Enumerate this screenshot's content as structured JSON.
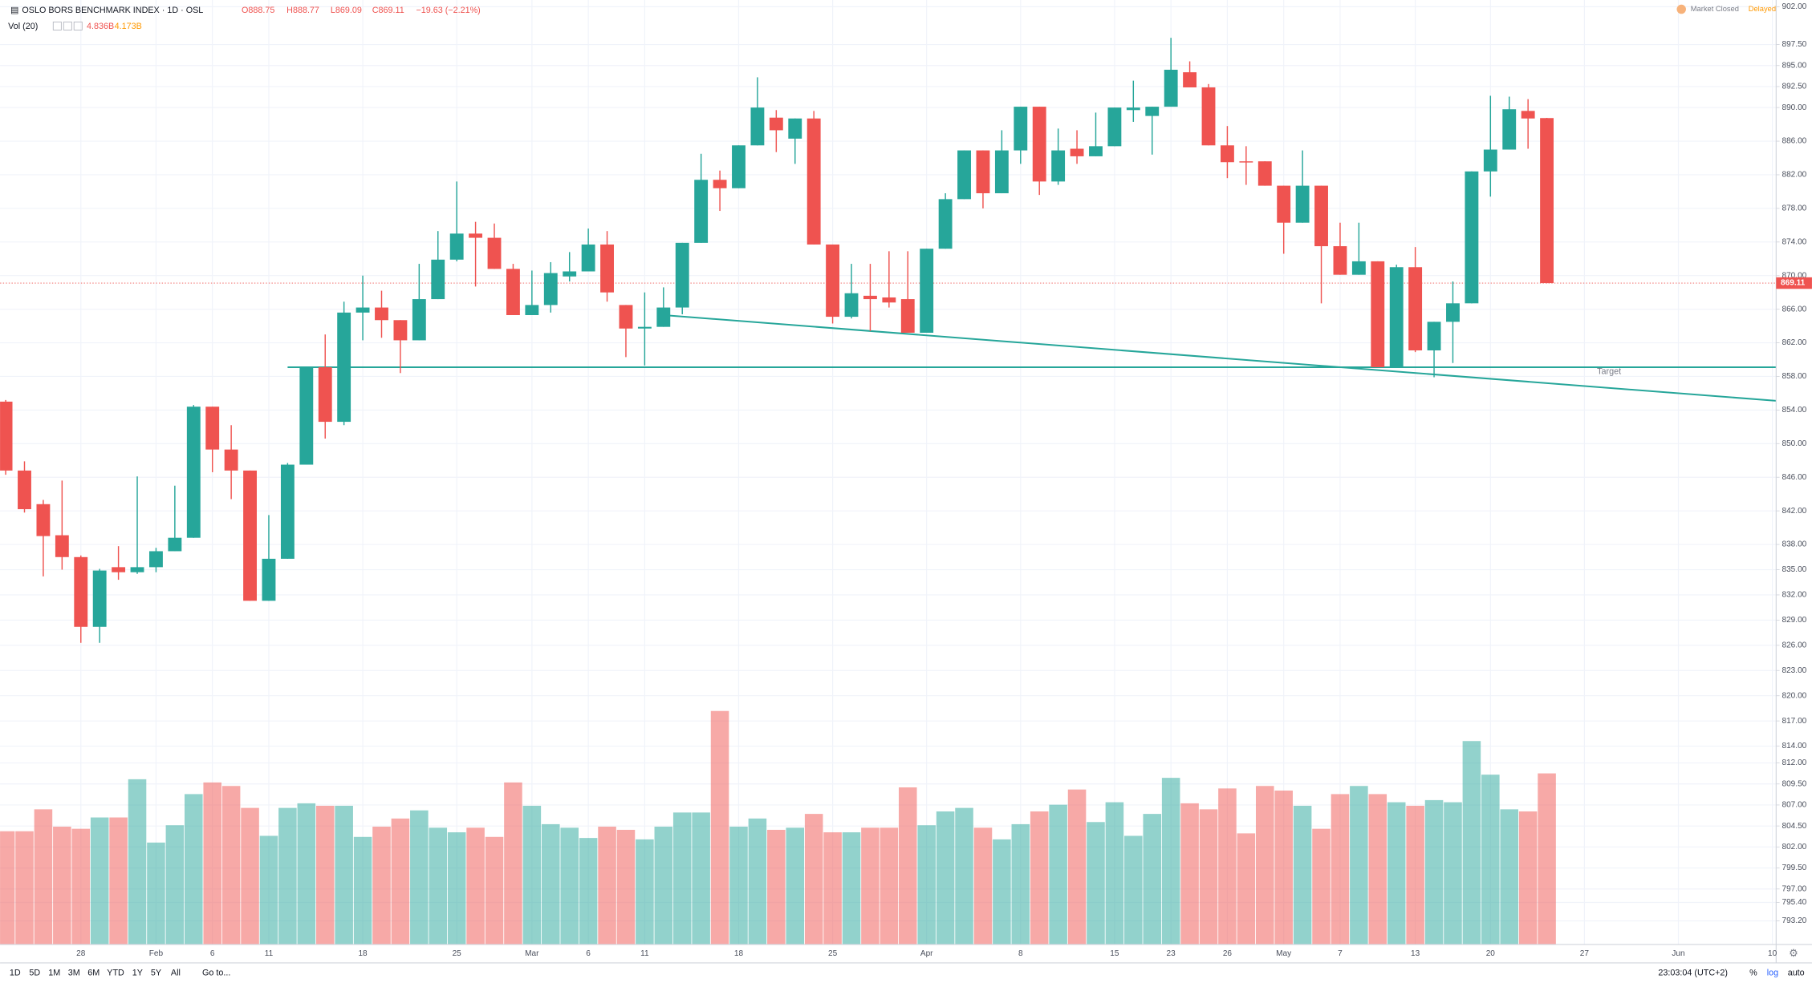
{
  "header": {
    "symbol": "OSLO BORS BENCHMARK INDEX · 1D · OSL",
    "open": "O888.75",
    "high": "H888.77",
    "low": "L869.09",
    "close": "C869.11",
    "change": "−19.63 (−2.21%)",
    "volume_label": "Vol (20)",
    "volume": "4.836B",
    "volume_ma": "4.173B",
    "status": "Market Closed",
    "delay": "Delayed"
  },
  "footer": {
    "ranges": [
      "1D",
      "5D",
      "1M",
      "3M",
      "6M",
      "YTD",
      "1Y",
      "5Y",
      "All"
    ],
    "goto": "Go to...",
    "time": "23:03:04 (UTC+2)",
    "percent": "%",
    "log": "log",
    "auto": "auto"
  },
  "chart_data": {
    "type": "candlestick",
    "up_color": "#26a69a",
    "down_color": "#ef5350",
    "grid": true,
    "annotation": "Target",
    "categories": [
      null,
      null,
      null,
      null,
      "28",
      null,
      null,
      null,
      "Feb",
      null,
      null,
      "6",
      null,
      null,
      "11",
      null,
      null,
      null,
      null,
      "18",
      null,
      null,
      null,
      null,
      "25",
      null,
      null,
      null,
      "Mar",
      null,
      null,
      "6",
      null,
      null,
      "11",
      null,
      null,
      null,
      null,
      "18",
      null,
      null,
      null,
      null,
      "25",
      null,
      null,
      null,
      null,
      "Apr",
      null,
      null,
      null,
      null,
      "8",
      null,
      null,
      null,
      null,
      "15",
      null,
      null,
      "23",
      null,
      null,
      "26",
      null,
      null,
      "May",
      null,
      null,
      "7",
      null,
      null,
      null,
      "13",
      null,
      null,
      null,
      "20",
      null,
      null,
      null,
      null,
      "27",
      null,
      null,
      null,
      null,
      "Jun",
      null,
      null,
      null,
      null,
      "10"
    ],
    "xlim": [
      -0.3,
      94.2
    ],
    "open": [
      855.0,
      846.8,
      842.8,
      839.1,
      836.5,
      828.2,
      835.3,
      834.7,
      835.3,
      837.2,
      838.8,
      854.4,
      849.3,
      846.8,
      831.3,
      836.3,
      847.5,
      859.1,
      852.6,
      865.6,
      866.2,
      864.7,
      862.3,
      867.2,
      871.9,
      875.0,
      874.5,
      870.8,
      865.3,
      866.5,
      869.9,
      870.5,
      873.7,
      866.5,
      863.7,
      863.9,
      866.2,
      873.9,
      881.4,
      880.4,
      885.5,
      888.8,
      886.3,
      888.7,
      873.7,
      865.1,
      867.6,
      867.4,
      867.2,
      863.2,
      873.2,
      879.1,
      884.9,
      879.8,
      884.9,
      890.1,
      881.2,
      885.1,
      884.2,
      885.4,
      889.7,
      889.0,
      890.1,
      894.2,
      892.4,
      885.5,
      883.6,
      883.6,
      880.7,
      876.3,
      880.7,
      873.5,
      870.1,
      871.7,
      859.1,
      871.0,
      861.1,
      864.5,
      866.7,
      882.4,
      885.0,
      889.6,
      888.75,
      null,
      null,
      null,
      null,
      null,
      null,
      null,
      null,
      null,
      null,
      null,
      null
    ],
    "high": [
      855.2,
      847.9,
      843.3,
      845.6,
      836.7,
      835.1,
      837.8,
      846.1,
      837.6,
      845.0,
      854.6,
      854.4,
      852.2,
      846.8,
      841.5,
      847.7,
      859.1,
      863.0,
      866.9,
      870.0,
      868.2,
      864.7,
      871.4,
      875.3,
      881.2,
      876.4,
      876.2,
      871.4,
      870.6,
      871.6,
      872.8,
      875.6,
      875.3,
      866.5,
      868.0,
      868.6,
      873.9,
      884.5,
      882.5,
      885.5,
      893.6,
      889.7,
      888.7,
      889.6,
      873.7,
      871.4,
      871.4,
      872.9,
      872.9,
      873.2,
      879.8,
      884.9,
      884.9,
      887.3,
      890.1,
      890.1,
      887.5,
      887.3,
      889.4,
      890.0,
      893.2,
      890.1,
      898.3,
      895.5,
      892.8,
      887.8,
      885.4,
      883.6,
      880.7,
      884.9,
      880.7,
      876.3,
      876.3,
      871.7,
      871.3,
      873.4,
      864.5,
      869.3,
      882.4,
      891.4,
      891.3,
      891.0,
      888.77,
      null,
      null,
      null,
      null,
      null,
      null,
      null,
      null,
      null,
      null,
      null,
      null
    ],
    "low": [
      846.3,
      841.8,
      834.2,
      835.0,
      826.3,
      826.3,
      833.8,
      834.5,
      834.7,
      837.2,
      838.8,
      846.6,
      843.4,
      831.3,
      831.3,
      836.3,
      847.5,
      850.6,
      852.2,
      862.3,
      862.6,
      858.4,
      862.3,
      867.2,
      871.7,
      868.7,
      870.8,
      865.3,
      865.3,
      865.6,
      869.3,
      870.5,
      866.9,
      860.3,
      859.3,
      863.9,
      865.4,
      873.9,
      877.7,
      880.4,
      885.5,
      884.7,
      883.3,
      873.7,
      864.3,
      864.9,
      863.4,
      866.2,
      863.2,
      863.2,
      873.2,
      879.1,
      878.0,
      879.8,
      883.3,
      879.6,
      880.8,
      883.3,
      884.2,
      885.4,
      888.3,
      884.4,
      890.1,
      892.4,
      885.5,
      881.6,
      880.8,
      880.7,
      872.6,
      876.3,
      866.7,
      870.1,
      870.1,
      859.1,
      859.1,
      860.9,
      857.9,
      859.6,
      866.7,
      879.4,
      885.0,
      885.1,
      869.09,
      null,
      null,
      null,
      null,
      null,
      null,
      null,
      null,
      null,
      null,
      null,
      null
    ],
    "close": [
      846.8,
      842.2,
      839.0,
      836.5,
      828.2,
      834.9,
      834.7,
      835.3,
      837.2,
      838.8,
      854.4,
      849.3,
      846.8,
      831.3,
      836.3,
      847.5,
      859.1,
      852.6,
      865.6,
      866.2,
      864.7,
      862.3,
      867.2,
      871.9,
      875.0,
      874.5,
      870.8,
      865.3,
      866.5,
      870.3,
      870.5,
      873.7,
      868.0,
      863.7,
      863.9,
      866.2,
      873.9,
      881.4,
      880.4,
      885.5,
      890.0,
      887.3,
      888.7,
      873.7,
      865.1,
      867.9,
      867.2,
      866.8,
      863.2,
      873.2,
      879.1,
      884.9,
      879.8,
      884.9,
      890.1,
      881.2,
      884.9,
      884.2,
      885.4,
      890.0,
      890.0,
      890.1,
      894.5,
      892.4,
      885.5,
      883.5,
      883.5,
      880.7,
      876.3,
      880.7,
      873.5,
      870.1,
      871.7,
      859.1,
      871.0,
      861.1,
      864.5,
      866.7,
      882.4,
      885.0,
      889.8,
      888.7,
      869.11,
      null,
      null,
      null,
      null,
      null,
      null,
      null,
      null,
      null,
      null,
      null,
      null
    ],
    "volume": [
      3.2,
      3.2,
      3.82,
      3.33,
      3.27,
      3.59,
      3.59,
      4.67,
      2.88,
      3.37,
      4.25,
      4.58,
      4.48,
      3.86,
      3.07,
      3.86,
      3.99,
      3.92,
      3.92,
      3.04,
      3.33,
      3.56,
      3.79,
      3.3,
      3.17,
      3.3,
      3.04,
      4.58,
      3.92,
      3.4,
      3.3,
      3.01,
      3.33,
      3.24,
      2.97,
      3.33,
      3.73,
      3.73,
      6.6,
      3.33,
      3.56,
      3.24,
      3.3,
      3.69,
      3.17,
      3.17,
      3.3,
      3.3,
      4.44,
      3.37,
      3.76,
      3.86,
      3.3,
      2.97,
      3.4,
      3.76,
      3.95,
      4.38,
      3.46,
      4.02,
      3.07,
      3.69,
      4.71,
      3.99,
      3.82,
      4.41,
      3.14,
      4.48,
      4.35,
      3.92,
      3.27,
      4.25,
      4.48,
      4.25,
      4.02,
      3.92,
      4.08,
      4.02,
      5.75,
      4.8,
      3.82,
      3.76,
      4.836,
      null,
      null,
      null,
      null,
      null,
      null,
      null,
      null,
      null,
      null,
      null,
      null
    ],
    "volume_ylim": [
      0,
      26.7
    ],
    "ylim": [
      790.4,
      902.8
    ],
    "yticks": [
      {
        "value": 902,
        "label": "902.00"
      },
      {
        "value": 897.5,
        "label": "897.50"
      },
      {
        "value": 895,
        "label": "895.00"
      },
      {
        "value": 892.5,
        "label": "892.50"
      },
      {
        "value": 890,
        "label": "890.00"
      },
      {
        "value": 886,
        "label": "886.00"
      },
      {
        "value": 882,
        "label": "882.00"
      },
      {
        "value": 878,
        "label": "878.00"
      },
      {
        "value": 874,
        "label": "874.00"
      },
      {
        "value": 870,
        "label": "870.00"
      },
      {
        "value": 866,
        "label": "866.00"
      },
      {
        "value": 862,
        "label": "862.00"
      },
      {
        "value": 858,
        "label": "858.00"
      },
      {
        "value": 854,
        "label": "854.00"
      },
      {
        "value": 850,
        "label": "850.00"
      },
      {
        "value": 846,
        "label": "846.00"
      },
      {
        "value": 842,
        "label": "842.00"
      },
      {
        "value": 838,
        "label": "838.00"
      },
      {
        "value": 835,
        "label": "835.00"
      },
      {
        "value": 832,
        "label": "832.00"
      },
      {
        "value": 829,
        "label": "829.00"
      },
      {
        "value": 826,
        "label": "826.00"
      },
      {
        "value": 823,
        "label": "823.00"
      },
      {
        "value": 820,
        "label": "820.00"
      },
      {
        "value": 817,
        "label": "817.00"
      },
      {
        "value": 814,
        "label": "814.00"
      },
      {
        "value": 812,
        "label": "812.00"
      },
      {
        "value": 809.5,
        "label": "809.50"
      },
      {
        "value": 807,
        "label": "807.00"
      },
      {
        "value": 804.5,
        "label": "804.50"
      },
      {
        "value": 802,
        "label": "802.00"
      },
      {
        "value": 799.5,
        "label": "799.50"
      },
      {
        "value": 797,
        "label": "797.00"
      },
      {
        "value": 795.4,
        "label": "795.40"
      },
      {
        "value": 793.2,
        "label": "793.20"
      }
    ],
    "lines": [
      {
        "color": "#26a69a",
        "x": [
          15,
          94.2
        ],
        "y": [
          859.1,
          859.1
        ]
      },
      {
        "color": "#26a69a",
        "x": [
          35,
          94.2
        ],
        "y": [
          865.3,
          855.1
        ]
      }
    ]
  }
}
